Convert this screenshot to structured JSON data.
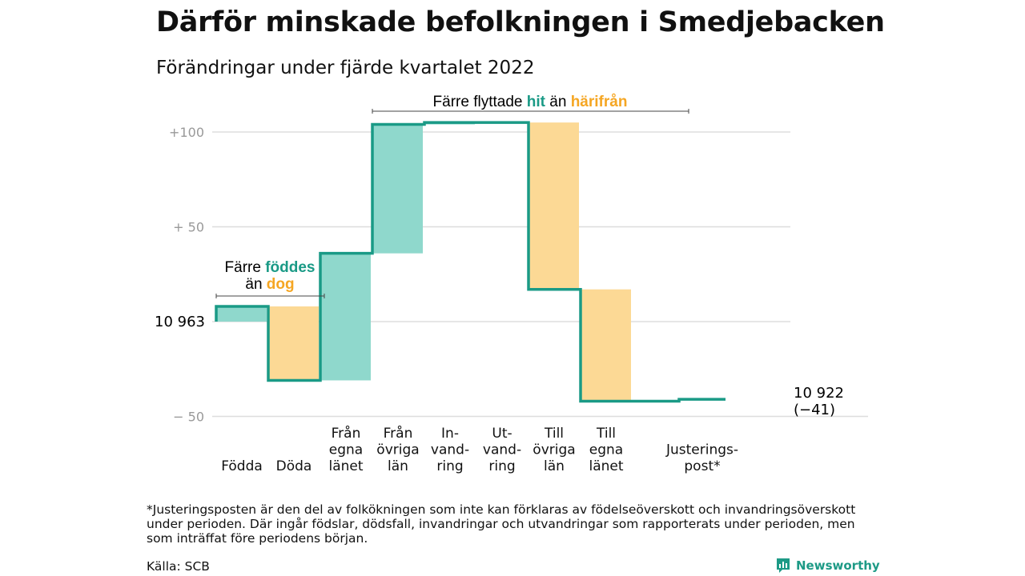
{
  "title": "Därför minskade befolkningen i Smedjebacken",
  "subtitle": "Förändringar under fjärde kvartalet 2022",
  "colors": {
    "line": "#1a9a86",
    "in": "#8fd8cc",
    "out": "#fcd995",
    "in_text": "#1a9a86",
    "out_text": "#f5a623",
    "grid": "#dddddd",
    "axis_text": "#999999"
  },
  "annotations": {
    "migration": {
      "prefix": "Färre flyttade ",
      "hit": "hit",
      "middle": " än ",
      "harifran": "härifrån"
    },
    "births": {
      "line1_prefix": "Färre ",
      "foddes": "föddes",
      "line2_prefix": "än ",
      "dog": "dog"
    }
  },
  "start_label": "10 963",
  "end_label": "10 922",
  "end_change": "(−41)",
  "footnote": "*Justeringsposten är den del av folkökningen som inte kan förklaras av födelseöverskott och invandringsöverskott under perioden. Där ingår födslar, dödsfall, invandringar och utvandringar som rapporterats under perioden, men som inträffat före periodens början.",
  "source": "Källa: SCB",
  "brand": "Newsworthy",
  "chart_data": {
    "type": "waterfall",
    "start_value": 10963,
    "end_value": 10922,
    "y_axis": {
      "relative_to": 10963,
      "ticks": [
        {
          "value": 100,
          "label": "+100"
        },
        {
          "value": 50,
          "label": "+ 50"
        },
        {
          "value": -50,
          "label": "− 50"
        }
      ]
    },
    "steps": [
      {
        "label": [
          "Födda"
        ],
        "change": 8,
        "kind": "in"
      },
      {
        "label": [
          "Döda"
        ],
        "change": -39,
        "kind": "out"
      },
      {
        "label": [
          "Från",
          "egna",
          "länet"
        ],
        "change": 67,
        "kind": "in"
      },
      {
        "label": [
          "Från",
          "övriga",
          "län"
        ],
        "change": 68,
        "kind": "in"
      },
      {
        "label": [
          "In-",
          "vand-",
          "ring"
        ],
        "change": 1,
        "kind": "in"
      },
      {
        "label": [
          "Ut-",
          "vand-",
          "ring"
        ],
        "change": 0,
        "kind": "out"
      },
      {
        "label": [
          "Till",
          "övriga",
          "län"
        ],
        "change": -88,
        "kind": "out"
      },
      {
        "label": [
          "Till",
          "egna",
          "länet"
        ],
        "change": -59,
        "kind": "out"
      },
      {
        "label": [
          "Justerings-",
          "post*"
        ],
        "change": 1,
        "kind": "adjustment"
      }
    ]
  }
}
